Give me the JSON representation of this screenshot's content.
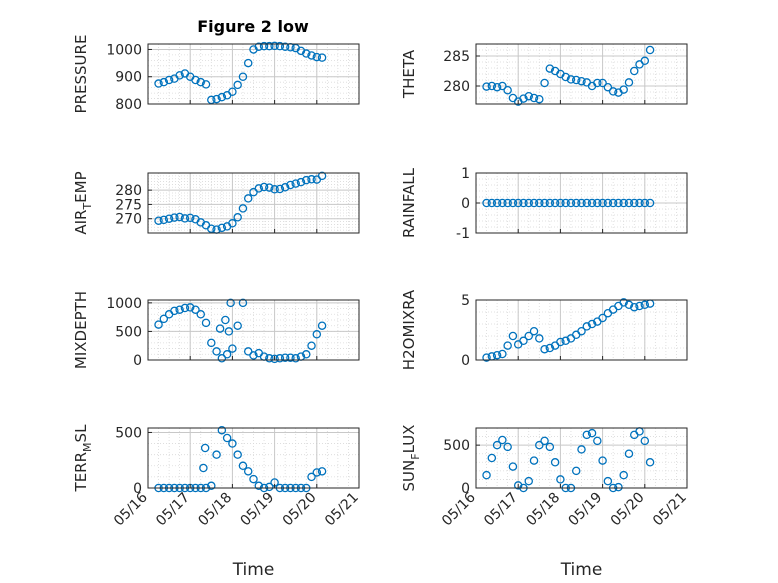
{
  "figure": {
    "title": "Figure 2 low",
    "marker_color": "#0072BD"
  },
  "chart_data": [
    {
      "type": "scatter",
      "title": "Figure 2 low",
      "xlabel": "",
      "ylabel": "PRESSURE",
      "xlim": [
        "05/16",
        "05/21"
      ],
      "ylim": [
        800,
        1020
      ],
      "yticks": [
        "800",
        "900",
        "1000"
      ],
      "grid": true,
      "x": [
        "05/16 06:00",
        "05/16 09:00",
        "05/16 12:00",
        "05/16 15:00",
        "05/16 18:00",
        "05/16 21:00",
        "05/17 00:00",
        "05/17 03:00",
        "05/17 06:00",
        "05/17 09:00",
        "05/17 12:00",
        "05/17 15:00",
        "05/17 18:00",
        "05/17 21:00",
        "05/18 00:00",
        "05/18 03:00",
        "05/18 06:00",
        "05/18 09:00",
        "05/18 12:00",
        "05/18 15:00",
        "05/18 18:00",
        "05/18 21:00",
        "05/19 00:00",
        "05/19 03:00",
        "05/19 06:00",
        "05/19 09:00",
        "05/19 12:00",
        "05/19 15:00",
        "05/19 18:00",
        "05/19 21:00",
        "05/20 00:00",
        "05/20 03:00"
      ],
      "y": [
        875,
        880,
        888,
        893,
        905,
        912,
        900,
        888,
        880,
        872,
        815,
        818,
        825,
        832,
        845,
        870,
        900,
        950,
        1000,
        1010,
        1012,
        1012,
        1013,
        1012,
        1010,
        1008,
        1005,
        995,
        985,
        978,
        972,
        970
      ]
    },
    {
      "type": "scatter",
      "xlabel": "",
      "ylabel": "THETA",
      "xlim": [
        "05/16",
        "05/21"
      ],
      "ylim": [
        277,
        287
      ],
      "yticks": [
        "280",
        "285"
      ],
      "grid": true,
      "x": [
        "05/16 06:00",
        "05/16 09:00",
        "05/16 12:00",
        "05/16 15:00",
        "05/16 18:00",
        "05/16 21:00",
        "05/17 00:00",
        "05/17 03:00",
        "05/17 06:00",
        "05/17 09:00",
        "05/17 12:00",
        "05/17 15:00",
        "05/17 18:00",
        "05/17 21:00",
        "05/18 00:00",
        "05/18 03:00",
        "05/18 06:00",
        "05/18 09:00",
        "05/18 12:00",
        "05/18 15:00",
        "05/18 18:00",
        "05/18 21:00",
        "05/19 00:00",
        "05/19 03:00",
        "05/19 06:00",
        "05/19 09:00",
        "05/19 12:00",
        "05/19 15:00",
        "05/19 18:00",
        "05/19 21:00",
        "05/20 00:00",
        "05/20 03:00"
      ],
      "y": [
        279.9,
        280.0,
        279.8,
        280.0,
        279.3,
        278.0,
        277.4,
        277.9,
        278.3,
        278.0,
        277.8,
        280.5,
        282.9,
        282.5,
        282.0,
        281.5,
        281.1,
        281.0,
        280.8,
        280.6,
        280.0,
        280.5,
        280.5,
        279.8,
        279.1,
        278.9,
        279.4,
        280.6,
        282.5,
        283.6,
        284.2,
        286.0
      ]
    },
    {
      "type": "scatter",
      "xlabel": "",
      "ylabel": "AIR_TEMP",
      "xlim": [
        "05/16",
        "05/21"
      ],
      "ylim": [
        265,
        286
      ],
      "yticks": [
        "270",
        "275",
        "280"
      ],
      "grid": true,
      "x": [
        "05/16 06:00",
        "05/16 09:00",
        "05/16 12:00",
        "05/16 15:00",
        "05/16 18:00",
        "05/16 21:00",
        "05/17 00:00",
        "05/17 03:00",
        "05/17 06:00",
        "05/17 09:00",
        "05/17 12:00",
        "05/17 15:00",
        "05/17 18:00",
        "05/17 21:00",
        "05/18 00:00",
        "05/18 03:00",
        "05/18 06:00",
        "05/18 09:00",
        "05/18 12:00",
        "05/18 15:00",
        "05/18 18:00",
        "05/18 21:00",
        "05/19 00:00",
        "05/19 03:00",
        "05/19 06:00",
        "05/19 09:00",
        "05/19 12:00",
        "05/19 15:00",
        "05/19 18:00",
        "05/19 21:00",
        "05/20 00:00",
        "05/20 03:00"
      ],
      "y": [
        269.3,
        269.6,
        270.0,
        270.4,
        270.6,
        270.1,
        270.3,
        269.8,
        268.7,
        267.7,
        266.5,
        266.2,
        266.8,
        267.3,
        268.4,
        270.5,
        273.6,
        277.1,
        279.3,
        280.6,
        281.1,
        280.9,
        280.3,
        280.4,
        281.0,
        281.8,
        282.3,
        282.8,
        283.5,
        283.8,
        283.7,
        285.0
      ]
    },
    {
      "type": "scatter",
      "xlabel": "",
      "ylabel": "RAINFALL",
      "xlim": [
        "05/16",
        "05/21"
      ],
      "ylim": [
        -1,
        1
      ],
      "yticks": [
        "-1",
        "0",
        "1"
      ],
      "grid": true,
      "x": [
        "05/16 06:00",
        "05/16 09:00",
        "05/16 12:00",
        "05/16 15:00",
        "05/16 18:00",
        "05/16 21:00",
        "05/17 00:00",
        "05/17 03:00",
        "05/17 06:00",
        "05/17 09:00",
        "05/17 12:00",
        "05/17 15:00",
        "05/17 18:00",
        "05/17 21:00",
        "05/18 00:00",
        "05/18 03:00",
        "05/18 06:00",
        "05/18 09:00",
        "05/18 12:00",
        "05/18 15:00",
        "05/18 18:00",
        "05/18 21:00",
        "05/19 00:00",
        "05/19 03:00",
        "05/19 06:00",
        "05/19 09:00",
        "05/19 12:00",
        "05/19 15:00",
        "05/19 18:00",
        "05/19 21:00",
        "05/20 00:00",
        "05/20 03:00"
      ],
      "y": [
        0,
        0,
        0,
        0,
        0,
        0,
        0,
        0,
        0,
        0,
        0,
        0,
        0,
        0,
        0,
        0,
        0,
        0,
        0,
        0,
        0,
        0,
        0,
        0,
        0,
        0,
        0,
        0,
        0,
        0,
        0,
        0
      ]
    },
    {
      "type": "scatter",
      "xlabel": "",
      "ylabel": "MIXDEPTH",
      "xlim": [
        "05/16",
        "05/21"
      ],
      "ylim": [
        0,
        1050
      ],
      "yticks": [
        "0",
        "500",
        "1000"
      ],
      "grid": true,
      "x": [
        "05/16 06:00",
        "05/16 09:00",
        "05/16 12:00",
        "05/16 15:00",
        "05/16 18:00",
        "05/16 21:00",
        "05/17 00:00",
        "05/17 03:00",
        "05/17 06:00",
        "05/17 09:00",
        "05/17 12:00",
        "05/17 15:00",
        "05/17 18:00",
        "05/17 21:00",
        "05/18 00:00",
        "05/18 03:00",
        "05/18 06:00",
        "05/18 09:00",
        "05/18 12:00",
        "05/18 15:00",
        "05/18 18:00",
        "05/18 21:00",
        "05/19 00:00",
        "05/19 03:00",
        "05/19 06:00",
        "05/19 09:00",
        "05/19 12:00",
        "05/19 15:00",
        "05/19 18:00",
        "05/19 21:00",
        "05/20 00:00",
        "05/20 03:00",
        "05/17 17:00",
        "05/17 20:00",
        "05/17 22:00",
        "05/17 23:00"
      ],
      "y": [
        620,
        720,
        800,
        860,
        880,
        910,
        920,
        880,
        800,
        650,
        300,
        150,
        30,
        100,
        200,
        600,
        1000,
        150,
        80,
        120,
        60,
        30,
        20,
        30,
        40,
        40,
        30,
        60,
        100,
        250,
        450,
        600,
        550,
        700,
        500,
        1000
      ]
    },
    {
      "type": "scatter",
      "xlabel": "",
      "ylabel": "H2OMIXRA",
      "xlim": [
        "05/16",
        "05/21"
      ],
      "ylim": [
        0,
        5
      ],
      "yticks": [
        "0",
        "5"
      ],
      "grid": true,
      "x": [
        "05/16 06:00",
        "05/16 09:00",
        "05/16 12:00",
        "05/16 15:00",
        "05/16 18:00",
        "05/16 21:00",
        "05/17 00:00",
        "05/17 03:00",
        "05/17 06:00",
        "05/17 09:00",
        "05/17 12:00",
        "05/17 15:00",
        "05/17 18:00",
        "05/17 21:00",
        "05/18 00:00",
        "05/18 03:00",
        "05/18 06:00",
        "05/18 09:00",
        "05/18 12:00",
        "05/18 15:00",
        "05/18 18:00",
        "05/18 21:00",
        "05/19 00:00",
        "05/19 03:00",
        "05/19 06:00",
        "05/19 09:00",
        "05/19 12:00",
        "05/19 15:00",
        "05/19 18:00",
        "05/19 21:00",
        "05/20 00:00",
        "05/20 03:00"
      ],
      "y": [
        0.2,
        0.3,
        0.4,
        0.5,
        1.2,
        2.0,
        1.3,
        1.6,
        2.0,
        2.4,
        1.8,
        0.9,
        1.0,
        1.2,
        1.5,
        1.6,
        1.8,
        2.1,
        2.4,
        2.8,
        3.0,
        3.2,
        3.5,
        3.9,
        4.2,
        4.5,
        4.8,
        4.6,
        4.4,
        4.5,
        4.6,
        4.7
      ]
    },
    {
      "type": "scatter",
      "xlabel": "",
      "ylabel": "TERR_MSL",
      "xlim": [
        "05/16",
        "05/21"
      ],
      "ylim": [
        0,
        540
      ],
      "yticks": [
        "0",
        "500"
      ],
      "grid": true,
      "x": [
        "05/16 06:00",
        "05/16 09:00",
        "05/16 12:00",
        "05/16 15:00",
        "05/16 18:00",
        "05/16 21:00",
        "05/17 00:00",
        "05/17 03:00",
        "05/17 06:00",
        "05/17 09:00",
        "05/17 12:00",
        "05/17 15:00",
        "05/17 18:00",
        "05/17 21:00",
        "05/18 00:00",
        "05/18 03:00",
        "05/18 06:00",
        "05/18 09:00",
        "05/18 12:00",
        "05/18 15:00",
        "05/18 18:00",
        "05/18 21:00",
        "05/19 00:00",
        "05/19 03:00",
        "05/19 06:00",
        "05/19 09:00",
        "05/19 12:00",
        "05/19 15:00",
        "05/19 18:00",
        "05/19 21:00",
        "05/20 00:00",
        "05/20 03:00",
        "05/17 07:30",
        "05/17 08:30"
      ],
      "y": [
        0,
        0,
        0,
        0,
        0,
        0,
        0,
        0,
        0,
        0,
        20,
        300,
        520,
        450,
        400,
        300,
        200,
        150,
        80,
        20,
        0,
        10,
        50,
        0,
        0,
        0,
        0,
        0,
        0,
        100,
        140,
        150,
        180,
        360
      ]
    },
    {
      "type": "scatter",
      "xlabel": "",
      "ylabel": "SUN_FLUX",
      "xlim": [
        "05/16",
        "05/21"
      ],
      "ylim": [
        0,
        700
      ],
      "yticks": [
        "0",
        "500"
      ],
      "grid": true,
      "x": [
        "05/16 06:00",
        "05/16 09:00",
        "05/16 12:00",
        "05/16 15:00",
        "05/16 18:00",
        "05/16 21:00",
        "05/17 00:00",
        "05/17 03:00",
        "05/17 06:00",
        "05/17 09:00",
        "05/17 12:00",
        "05/17 15:00",
        "05/17 18:00",
        "05/17 21:00",
        "05/18 00:00",
        "05/18 03:00",
        "05/18 06:00",
        "05/18 09:00",
        "05/18 12:00",
        "05/18 15:00",
        "05/18 18:00",
        "05/18 21:00",
        "05/19 00:00",
        "05/19 03:00",
        "05/19 06:00",
        "05/19 09:00",
        "05/19 12:00",
        "05/19 15:00",
        "05/19 18:00",
        "05/19 21:00",
        "05/20 00:00",
        "05/20 03:00"
      ],
      "y": [
        150,
        350,
        500,
        560,
        480,
        250,
        30,
        0,
        80,
        320,
        500,
        550,
        480,
        300,
        100,
        0,
        0,
        200,
        450,
        620,
        640,
        550,
        320,
        80,
        0,
        10,
        150,
        400,
        620,
        660,
        550,
        300
      ]
    }
  ]
}
